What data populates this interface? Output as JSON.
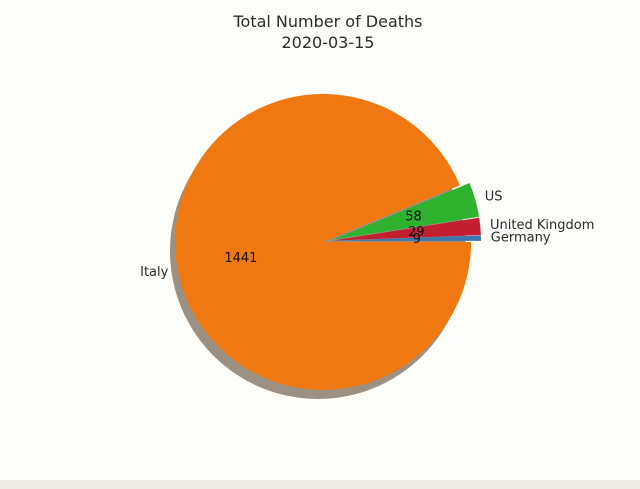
{
  "chart_data": {
    "type": "pie",
    "title": [
      "Total Number of Deaths",
      "2020-03-15"
    ],
    "slices": [
      {
        "label": "Germany",
        "value": 9,
        "color": "#3b76af"
      },
      {
        "label": "United Kingdom",
        "value": 29,
        "color": "#c21f30"
      },
      {
        "label": "US",
        "value": 58,
        "color": "#2fb22f"
      },
      {
        "label": "Italy",
        "value": 1441,
        "color": "#f07810"
      }
    ],
    "shadow": true,
    "shadow_color": "#9c9082",
    "legend": "none"
  }
}
